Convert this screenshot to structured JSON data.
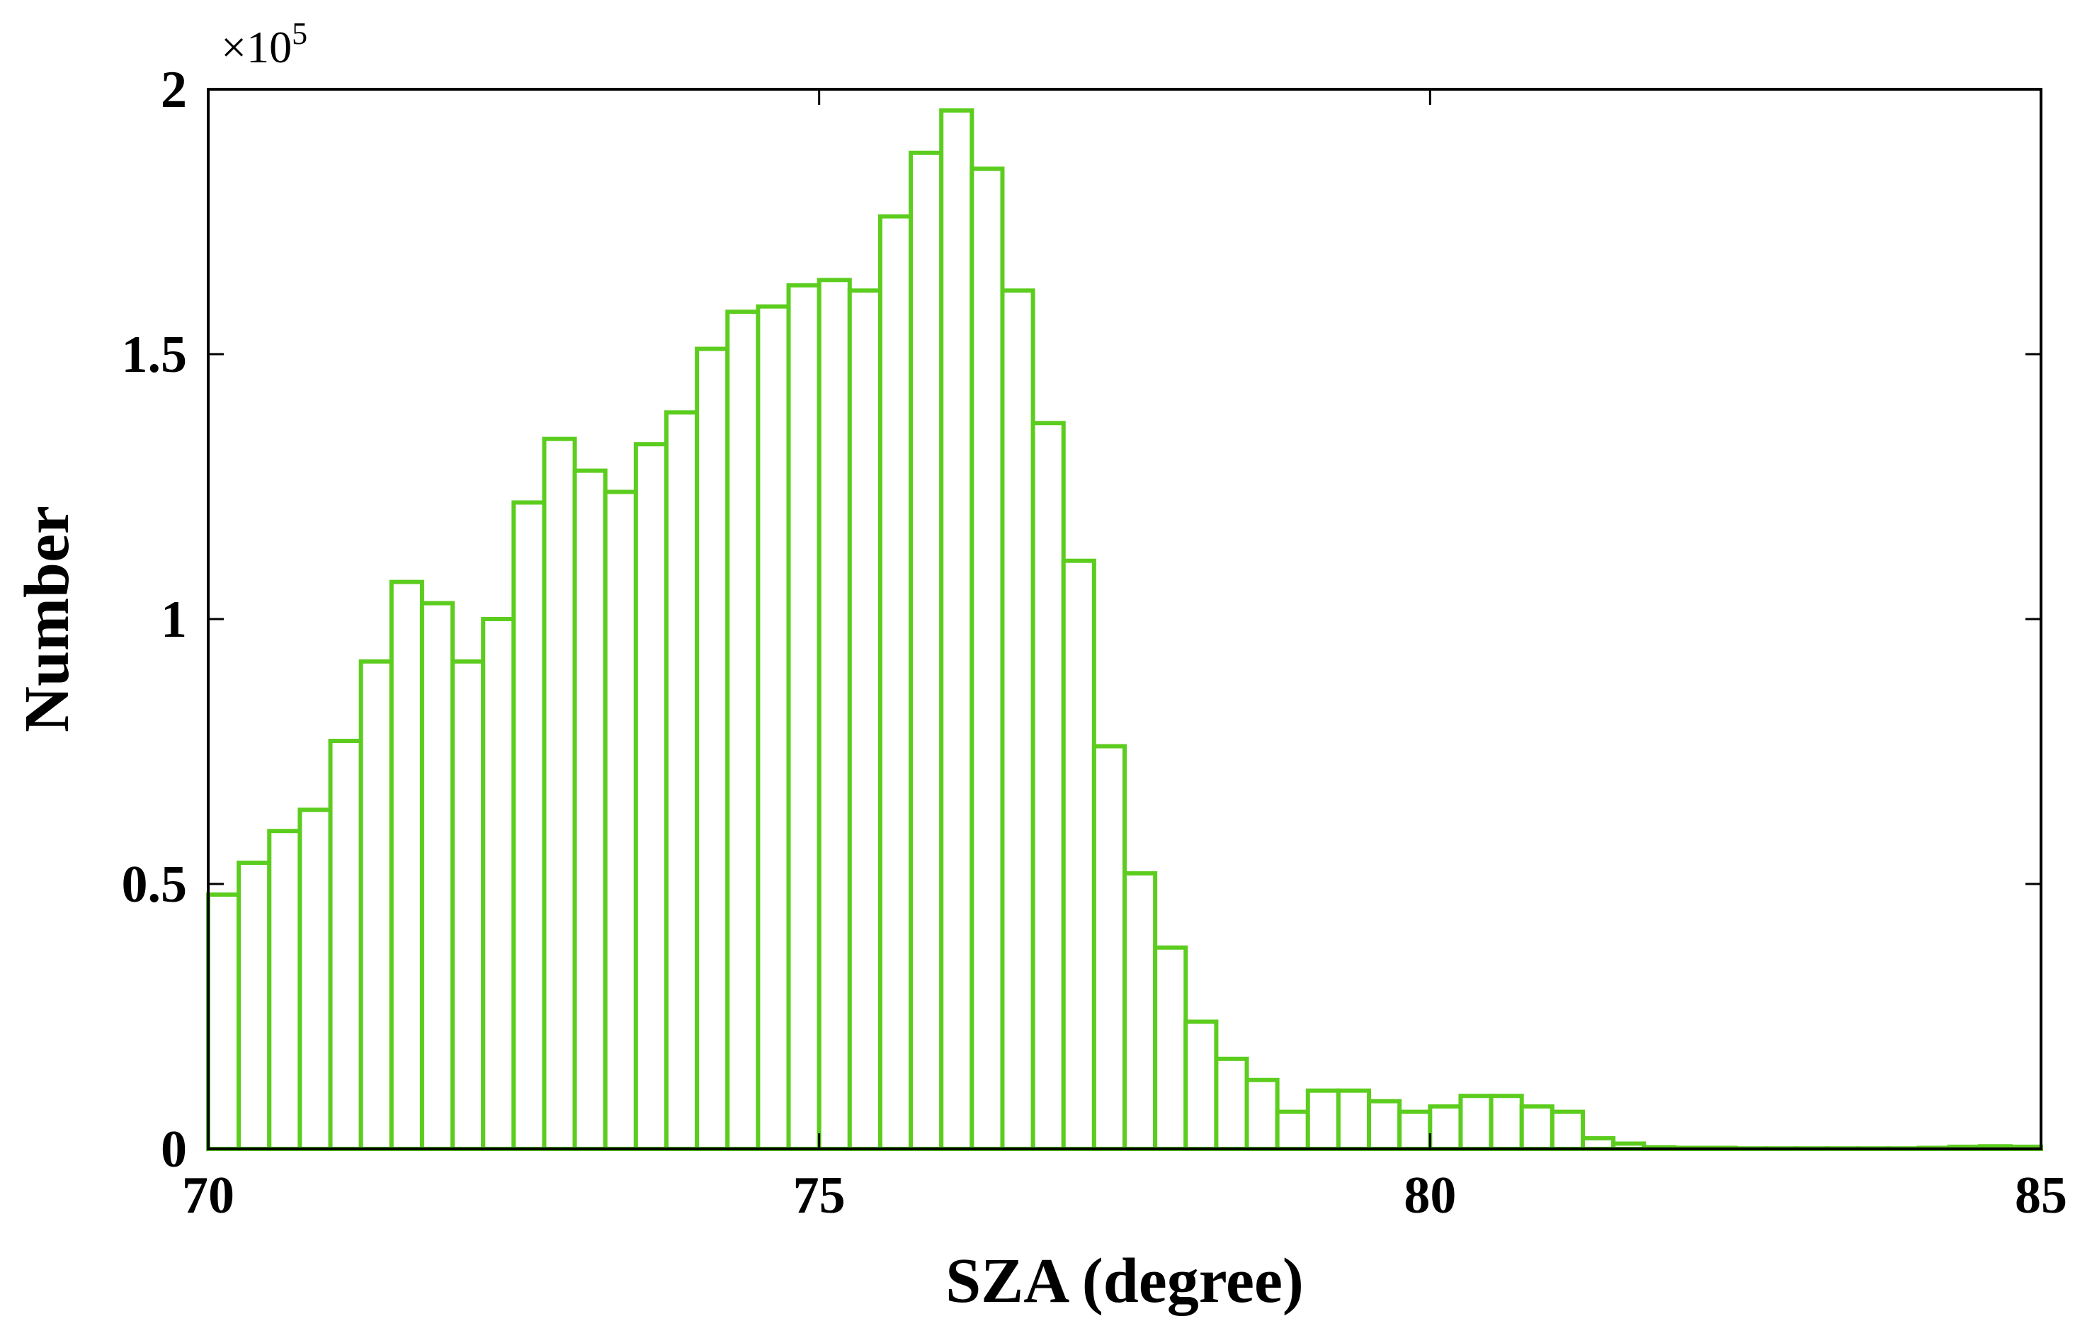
{
  "chart_data": {
    "type": "bar",
    "title": "",
    "xlabel": "SZA (degree)",
    "ylabel": "Number",
    "y_multiplier_label": "×10",
    "y_multiplier_exponent": "5",
    "xlim": [
      70,
      85
    ],
    "ylim": [
      0,
      2
    ],
    "xticks": [
      70,
      75,
      80,
      85
    ],
    "yticks": [
      0,
      0.5,
      1,
      1.5,
      2
    ],
    "ytick_labels": [
      "0",
      "0.5",
      "1",
      "1.5",
      "2"
    ],
    "grid": false,
    "legend": null,
    "colors": {
      "bar_edge": "#5ccd1e",
      "bar_fill": "#ffffff",
      "axis": "#000000"
    },
    "bin_width": 0.25,
    "bin_starts": [
      70,
      70.25,
      70.5,
      70.75,
      71,
      71.25,
      71.5,
      71.75,
      72,
      72.25,
      72.5,
      72.75,
      73,
      73.25,
      73.5,
      73.75,
      74,
      74.25,
      74.5,
      74.75,
      75,
      75.25,
      75.5,
      75.75,
      76,
      76.25,
      76.5,
      76.75,
      77,
      77.25,
      77.5,
      77.75,
      78,
      78.25,
      78.5,
      78.75,
      79,
      79.25,
      79.5,
      79.75,
      80,
      80.25,
      80.5,
      80.75,
      81,
      81.25,
      81.5,
      81.75,
      82,
      82.25,
      82.5,
      82.75,
      83,
      83.25,
      83.5,
      83.75,
      84,
      84.25,
      84.5,
      84.75
    ],
    "values": [
      0.48,
      0.54,
      0.6,
      0.64,
      0.77,
      0.92,
      1.07,
      1.03,
      0.92,
      1.0,
      1.22,
      1.34,
      1.28,
      1.24,
      1.33,
      1.39,
      1.51,
      1.58,
      1.59,
      1.63,
      1.64,
      1.62,
      1.76,
      1.88,
      1.96,
      1.85,
      1.62,
      1.37,
      1.11,
      0.76,
      0.52,
      0.38,
      0.24,
      0.17,
      0.13,
      0.07,
      0.11,
      0.11,
      0.09,
      0.07,
      0.08,
      0.1,
      0.1,
      0.08,
      0.07,
      0.02,
      0.01,
      0.003,
      0.002,
      0.002,
      0.001,
      0.001,
      0.001,
      0.001,
      0.001,
      0.001,
      0.002,
      0.004,
      0.005,
      0.004
    ]
  }
}
